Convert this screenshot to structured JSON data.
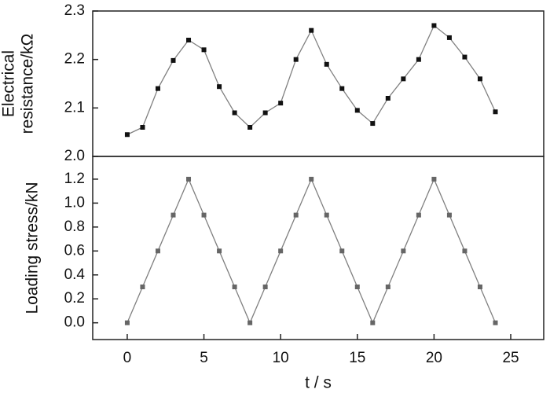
{
  "chart_data": [
    {
      "type": "line",
      "ylabel": [
        "Electrical",
        "resistance/kΩ"
      ],
      "x": [
        0,
        1,
        2,
        3,
        4,
        5,
        6,
        7,
        8,
        9,
        10,
        11,
        12,
        13,
        14,
        15,
        16,
        17,
        18,
        19,
        20,
        21,
        22,
        23,
        24
      ],
      "values": [
        2.045,
        2.06,
        2.14,
        2.198,
        2.24,
        2.22,
        2.144,
        2.09,
        2.06,
        2.09,
        2.11,
        2.2,
        2.26,
        2.19,
        2.14,
        2.095,
        2.068,
        2.12,
        2.16,
        2.2,
        2.27,
        2.245,
        2.205,
        2.16,
        2.092
      ],
      "color": "#808080",
      "marker_color": "#111111",
      "xlim": [
        -2.25,
        27.15
      ],
      "ylim": [
        2.0,
        2.3
      ],
      "yticks": [
        {
          "value": 2,
          "label": "2.0"
        },
        2.1,
        2.2,
        2.3
      ]
    },
    {
      "type": "line",
      "ylabel": [
        "Loading stress/kN"
      ],
      "xlabel": "t / s",
      "x": [
        0,
        1,
        2,
        3,
        4,
        5,
        6,
        7,
        8,
        9,
        10,
        11,
        12,
        13,
        14,
        15,
        16,
        17,
        18,
        19,
        20,
        21,
        22,
        23,
        24
      ],
      "values": [
        0,
        0.3,
        0.6,
        0.9,
        1.2,
        0.9,
        0.6,
        0.3,
        0,
        0.3,
        0.6,
        0.9,
        1.2,
        0.9,
        0.6,
        0.3,
        0,
        0.3,
        0.6,
        0.9,
        1.2,
        0.9,
        0.6,
        0.3,
        0
      ],
      "color": "#808080",
      "marker_color": "#666666",
      "xlim": [
        -2.25,
        27.15
      ],
      "ylim": [
        -0.14,
        1.39
      ],
      "xticks": [
        0,
        5,
        10,
        15,
        20,
        25
      ],
      "yticks": [
        {
          "value": 0,
          "label": "0.0"
        },
        0.2,
        0.4,
        0.6,
        0.8,
        {
          "value": 1,
          "label": "1.0"
        },
        1.2
      ]
    }
  ]
}
